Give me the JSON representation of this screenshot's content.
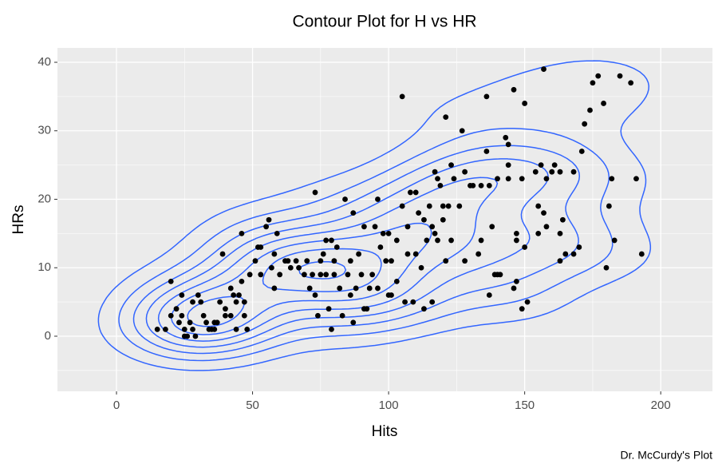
{
  "chart_data": {
    "type": "scatter",
    "title": "Contour Plot for H vs HR",
    "x_label": "Hits",
    "y_label": "HRs",
    "caption": "Dr. McCurdy's Plot",
    "xlim": [
      -21.7,
      219
    ],
    "ylim": [
      -8.05,
      42.1
    ],
    "xticks": [
      0,
      50,
      100,
      150,
      200
    ],
    "yticks": [
      0,
      10,
      20,
      30,
      40
    ],
    "grid": true,
    "point_color": "#000000",
    "contour_color": "#3366FF",
    "contours": true,
    "x": [
      15,
      18,
      20,
      20,
      22,
      23,
      24,
      24,
      25,
      25,
      26,
      27,
      28,
      28,
      29,
      30,
      31,
      32,
      33,
      34,
      35,
      36,
      36,
      37,
      38,
      39,
      40,
      40,
      42,
      42,
      43,
      44,
      44,
      45,
      46,
      46,
      47,
      47,
      48,
      49,
      51,
      52,
      53,
      53,
      55,
      56,
      57,
      58,
      58,
      59,
      60,
      62,
      63,
      64,
      66,
      67,
      69,
      70,
      71,
      72,
      73,
      73,
      74,
      75,
      75,
      76,
      77,
      77,
      78,
      79,
      79,
      80,
      80,
      81,
      82,
      83,
      84,
      85,
      86,
      86,
      87,
      87,
      88,
      89,
      90,
      91,
      91,
      92,
      93,
      94,
      95,
      96,
      96,
      97,
      98,
      99,
      100,
      100,
      101,
      101,
      103,
      103,
      105,
      105,
      106,
      107,
      107,
      108,
      109,
      110,
      110,
      111,
      112,
      113,
      113,
      114,
      115,
      116,
      116,
      117,
      117,
      118,
      118,
      119,
      120,
      120,
      121,
      121,
      122,
      123,
      123,
      124,
      126,
      127,
      128,
      128,
      130,
      131,
      133,
      134,
      134,
      136,
      136,
      137,
      137,
      138,
      139,
      140,
      140,
      141,
      143,
      144,
      144,
      144,
      146,
      146,
      147,
      147,
      147,
      149,
      149,
      150,
      150,
      151,
      154,
      155,
      155,
      156,
      157,
      157,
      158,
      158,
      160,
      161,
      163,
      163,
      163,
      164,
      165,
      168,
      168,
      170,
      171,
      172,
      174,
      175,
      177,
      179,
      180,
      181,
      182,
      183,
      185,
      189,
      191,
      193
    ],
    "values": [
      1,
      1,
      3,
      8,
      4,
      2,
      6,
      3,
      1,
      0,
      0,
      2,
      5,
      1,
      0,
      6,
      5,
      3,
      2,
      1,
      1,
      2,
      1,
      2,
      5,
      12,
      3,
      4,
      7,
      3,
      6,
      5,
      1,
      6,
      15,
      8,
      3,
      5,
      1,
      9,
      11,
      13,
      13,
      9,
      16,
      17,
      10,
      7,
      12,
      15,
      9,
      11,
      11,
      10,
      11,
      10,
      9,
      11,
      7,
      9,
      21,
      6,
      3,
      9,
      11,
      12,
      14,
      9,
      4,
      1,
      14,
      11,
      9,
      13,
      7,
      3,
      20,
      9,
      11,
      6,
      18,
      2,
      7,
      12,
      9,
      4,
      16,
      4,
      7,
      9,
      16,
      7,
      20,
      13,
      15,
      11,
      6,
      15,
      11,
      6,
      8,
      14,
      35,
      19,
      5,
      16,
      12,
      21,
      5,
      12,
      21,
      18,
      10,
      4,
      17,
      14,
      19,
      16,
      5,
      24,
      15,
      23,
      14,
      22,
      17,
      19,
      32,
      11,
      19,
      25,
      14,
      23,
      19,
      30,
      24,
      11,
      22,
      22,
      12,
      22,
      14,
      35,
      27,
      6,
      22,
      16,
      9,
      9,
      23,
      9,
      29,
      28,
      23,
      25,
      36,
      7,
      8,
      15,
      14,
      4,
      23,
      34,
      13,
      5,
      24,
      15,
      19,
      25,
      39,
      18,
      16,
      23,
      24,
      25,
      15,
      11,
      24,
      17,
      12,
      24,
      12,
      13,
      27,
      31,
      33,
      37,
      38,
      34,
      10,
      19,
      23,
      14,
      38,
      37,
      23,
      12
    ]
  }
}
